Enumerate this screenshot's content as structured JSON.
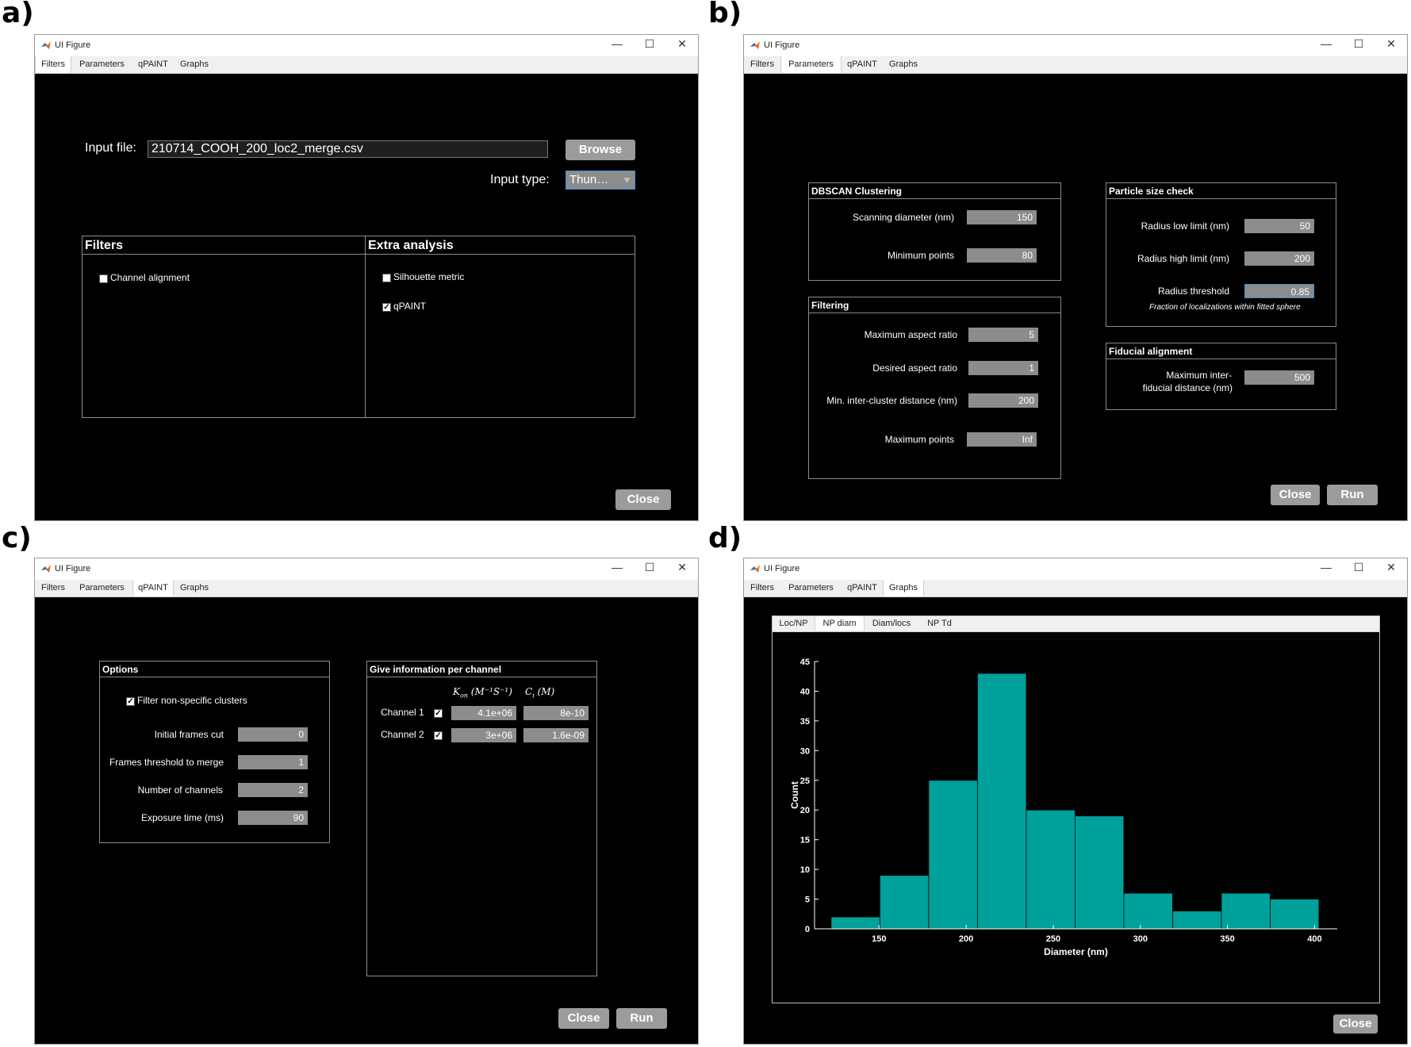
{
  "panel_labels": {
    "a": "a)",
    "b": "b)",
    "c": "c)",
    "d": "d)"
  },
  "window": {
    "title": "UI Figure",
    "minimize": "—",
    "maximize": "☐",
    "close": "✕"
  },
  "tabs": {
    "filters": "Filters",
    "parameters": "Parameters",
    "qpaint": "qPAINT",
    "graphs": "Graphs"
  },
  "a": {
    "input_file_label": "Input file:",
    "input_file_value": "210714_COOH_200_loc2_merge.csv",
    "browse": "Browse",
    "input_type_label": "Input type:",
    "input_type_value": "Thun…",
    "filters_title": "Filters",
    "extra_title": "Extra analysis",
    "channel_alignment": "Channel alignment",
    "channel_alignment_checked": "",
    "silhouette": "Silhouette metric",
    "silhouette_checked": "",
    "qpaint": "qPAINT",
    "qpaint_checked": "✓",
    "close": "Close"
  },
  "b": {
    "dbscan_title": "DBSCAN Clustering",
    "scan_diam_label": "Scanning diameter (nm)",
    "scan_diam": "150",
    "min_points_label": "Minimum points",
    "min_points": "80",
    "filtering_title": "Filtering",
    "max_aspect_label": "Maximum aspect ratio",
    "max_aspect": "5",
    "des_aspect_label": "Desired aspect ratio",
    "des_aspect": "1",
    "min_inter_label": "Min. inter-cluster distance (nm)",
    "min_inter": "200",
    "max_points_label": "Maximum points",
    "max_points": "Inf",
    "particle_title": "Particle size check",
    "rad_low_label": "Radius low limit (nm)",
    "rad_low": "50",
    "rad_high_label": "Radius high limit (nm)",
    "rad_high": "200",
    "rad_thr_label": "Radius threshold",
    "rad_thr": "0.85",
    "rad_note": "Fraction of localizations within fitted sphere",
    "fiducial_title": "Fiducial alignment",
    "fid_label_1": "Maximum inter-",
    "fid_label_2": "fiducial distance (nm)",
    "fid_value": "500",
    "close": "Close",
    "run": "Run"
  },
  "c": {
    "options_title": "Options",
    "filter_ns": "Filter non-specific clusters",
    "filter_ns_checked": "✓",
    "init_frames_label": "Initial frames cut",
    "init_frames": "0",
    "frames_thr_label": "Frames threshold to merge",
    "frames_thr": "1",
    "n_channels_label": "Number of channels",
    "n_channels": "2",
    "exposure_label": "Exposure time (ms)",
    "exposure": "90",
    "channel_title": "Give information per channel",
    "kon_header": "K",
    "kon_sub": "on",
    "kon_units": "(M⁻¹S⁻¹)",
    "ci_header": "C",
    "ci_sub": "i",
    "ci_units": "(M)",
    "ch1_label": "Channel 1",
    "ch1_checked": "✓",
    "ch1_kon": "4.1e+06",
    "ch1_ci": "8e-10",
    "ch2_label": "Channel 2",
    "ch2_checked": "✓",
    "ch2_kon": "3e+06",
    "ch2_ci": "1.6e-09",
    "close": "Close",
    "run": "Run"
  },
  "d": {
    "inner_tabs": [
      "Loc/NP",
      "NP diam",
      "Diam/locs",
      "NP Td"
    ],
    "close": "Close"
  },
  "chart_data": {
    "type": "bar",
    "title": "",
    "xlabel": "Diameter (nm)",
    "ylabel": "Count",
    "bin_edges": [
      122.5,
      150.5,
      178.5,
      206.5,
      234.5,
      262.5,
      290.5,
      318.5,
      346.5,
      374.5,
      402.5
    ],
    "values": [
      2,
      9,
      25,
      43,
      20,
      19,
      6,
      3,
      6,
      5
    ],
    "xlim": [
      113,
      413
    ],
    "ylim": [
      0,
      45
    ],
    "xticks": [
      150,
      200,
      250,
      300,
      350,
      400
    ],
    "yticks": [
      0,
      5,
      10,
      15,
      20,
      25,
      30,
      35,
      40,
      45
    ],
    "bar_color": "#00a09b",
    "background": "#000000",
    "grid": false
  }
}
